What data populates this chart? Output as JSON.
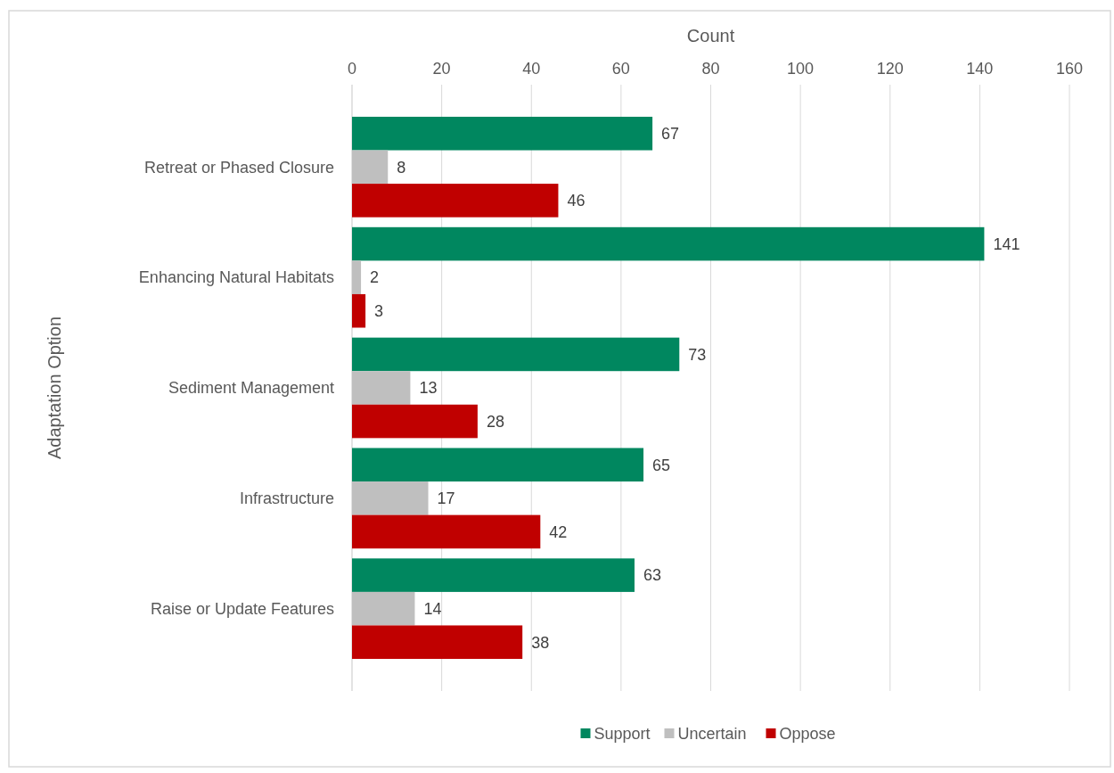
{
  "chart_data": {
    "type": "bar",
    "orientation": "horizontal",
    "xlabel": "Count",
    "ylabel": "Adaptation Option",
    "categories": [
      "Retreat or Phased Closure",
      "Enhancing Natural Habitats",
      "Sediment Management",
      "Infrastructure",
      "Raise or Update Features"
    ],
    "series": [
      {
        "name": "Support",
        "color": "#00875f",
        "values": [
          67,
          141,
          73,
          65,
          63
        ]
      },
      {
        "name": "Uncertain",
        "color": "#bfbfbf",
        "values": [
          8,
          2,
          13,
          17,
          14
        ]
      },
      {
        "name": "Oppose",
        "color": "#c00000",
        "values": [
          46,
          3,
          28,
          42,
          38
        ]
      }
    ],
    "xlim": [
      0,
      160
    ],
    "xticks": [
      0,
      20,
      40,
      60,
      80,
      100,
      120,
      140,
      160
    ],
    "grid": "x",
    "legend": "bottom",
    "data_labels": true
  }
}
